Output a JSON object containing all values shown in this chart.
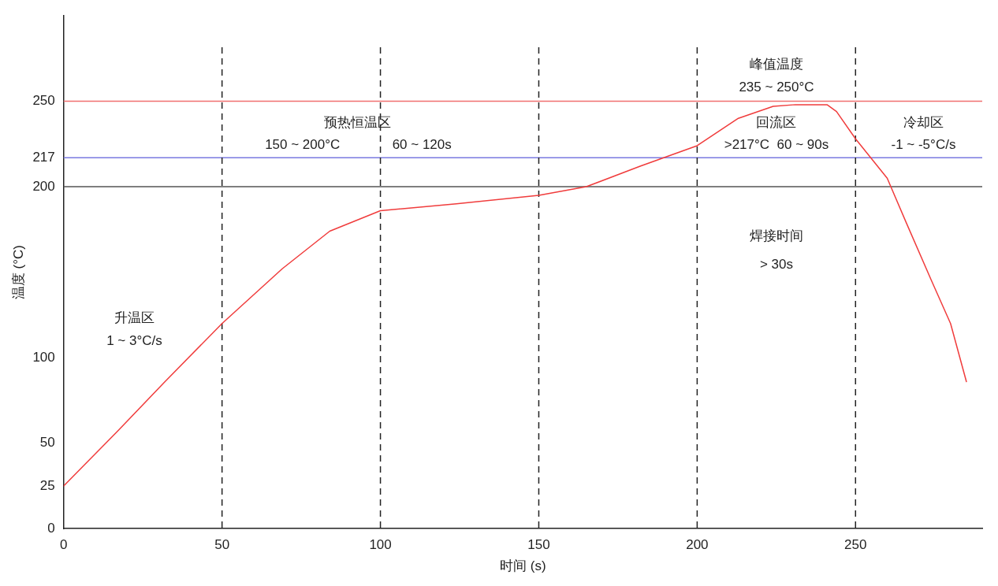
{
  "chart_data": {
    "type": "line",
    "xlabel": "时间 (s)",
    "ylabel": "温度 (°C)",
    "xlim": [
      0,
      290
    ],
    "ylim": [
      0,
      300
    ],
    "xticks": [
      0,
      50,
      100,
      150,
      200,
      250
    ],
    "yticks": [
      0,
      25,
      50,
      100,
      200,
      217,
      250
    ],
    "grid": false,
    "legend": false,
    "marker": "none",
    "line_style": "solid",
    "series": [
      {
        "color": "#f03c3c",
        "x": [
          0,
          17,
          32,
          50,
          69,
          84,
          100,
          124,
          150,
          165,
          182,
          200,
          213,
          224,
          231,
          241,
          244,
          250,
          260,
          266,
          274,
          280,
          285
        ],
        "values": [
          25,
          57,
          86,
          120,
          152,
          174,
          186,
          190,
          195,
          200,
          212,
          224,
          240,
          247,
          248,
          248,
          244,
          228,
          205,
          179,
          145,
          120,
          86
        ]
      }
    ],
    "ref_lines": [
      {
        "axis": "y",
        "value": 250,
        "color": "#f07070",
        "line_style": "solid"
      },
      {
        "axis": "y",
        "value": 217,
        "color": "#7a7ae0",
        "line_style": "solid"
      },
      {
        "axis": "y",
        "value": 200,
        "color": "#555555",
        "line_style": "solid"
      },
      {
        "axis": "x",
        "value": 50,
        "color": "#222222",
        "line_style": "dashed"
      },
      {
        "axis": "x",
        "value": 100,
        "color": "#222222",
        "line_style": "dashed"
      },
      {
        "axis": "x",
        "value": 150,
        "color": "#222222",
        "line_style": "dashed"
      },
      {
        "axis": "x",
        "value": 200,
        "color": "#222222",
        "line_style": "dashed"
      },
      {
        "axis": "x",
        "value": 250,
        "color": "#222222",
        "line_style": "dashed"
      }
    ],
    "annotations": [
      "升温区",
      "1 ~ 3°C/s",
      "预热恒温区",
      "150 ~ 200°C",
      "60 ~ 120s",
      "峰值温度",
      "235 ~ 250°C",
      "回流区",
      ">217°C  60 ~ 90s",
      "焊接时间",
      "> 30s",
      "冷却区",
      "-1 ~ -5°C/s"
    ]
  }
}
